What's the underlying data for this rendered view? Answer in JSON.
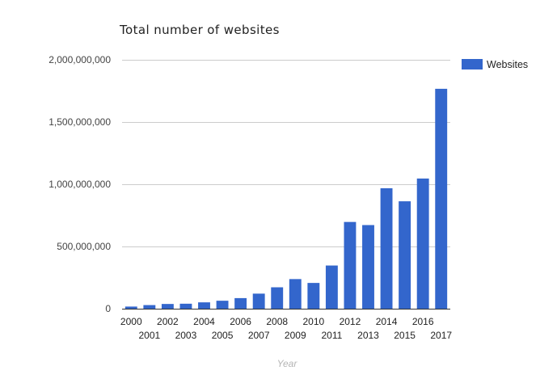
{
  "chart_data": {
    "type": "bar",
    "title": "Total number of websites",
    "xlabel": "Year",
    "ylabel": "",
    "ylim": [
      0,
      2000000000
    ],
    "yticks": [
      0,
      500000000,
      1000000000,
      1500000000,
      2000000000
    ],
    "ytick_labels": [
      "0",
      "500,000,000",
      "1,000,000,000",
      "1,500,000,000",
      "2,000,000,000"
    ],
    "grid": true,
    "legend_position": "top-right",
    "categories": [
      "2000",
      "2001",
      "2002",
      "2003",
      "2004",
      "2005",
      "2006",
      "2007",
      "2008",
      "2009",
      "2010",
      "2011",
      "2012",
      "2013",
      "2014",
      "2015",
      "2016",
      "2017"
    ],
    "series": [
      {
        "name": "Websites",
        "color": "#3366cc",
        "values": [
          17000000,
          29000000,
          38000000,
          40000000,
          51000000,
          64000000,
          85000000,
          121000000,
          172000000,
          238000000,
          207000000,
          347000000,
          697000000,
          672000000,
          968000000,
          863000000,
          1046000000,
          1767000000
        ]
      }
    ]
  }
}
